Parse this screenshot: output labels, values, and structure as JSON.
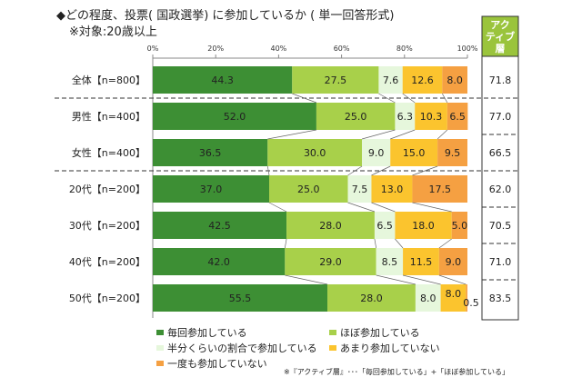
{
  "title": "◆どの程度、投票( 国政選挙) に参加しているか ( 単一回答形式)",
  "subtitle": "※対象:20歳以上",
  "active_header": "アクティブ層",
  "footnote": "※『アクティブ層』･･･「毎回参加している」+「ほぼ参加している」",
  "colors": {
    "s1": "#3d8f34",
    "s2": "#a8d04a",
    "s3": "#e6f7dc",
    "s4": "#fbc42e",
    "s5": "#f5a042",
    "active_header": "#9ac43c"
  },
  "chart_data": {
    "type": "bar",
    "orientation": "horizontal-stacked-100",
    "xlim": [
      0,
      100
    ],
    "ticks": [
      "0%",
      "20%",
      "40%",
      "60%",
      "80%",
      "100%"
    ],
    "legend_position": "bottom",
    "categories": [
      "全体【n=800】",
      "男性【n=400】",
      "女性【n=400】",
      "20代【n=200】",
      "30代【n=200】",
      "40代【n=200】",
      "50代【n=200】"
    ],
    "series": [
      {
        "name": "毎回参加している",
        "values": [
          44.3,
          52.0,
          36.5,
          37.0,
          42.5,
          42.0,
          55.5
        ]
      },
      {
        "name": "ほぼ参加している",
        "values": [
          27.5,
          25.0,
          30.0,
          25.0,
          28.0,
          29.0,
          28.0
        ]
      },
      {
        "name": "半分くらいの割合で参加している",
        "values": [
          7.6,
          6.3,
          9.0,
          7.5,
          6.5,
          8.5,
          8.0
        ]
      },
      {
        "name": "あまり参加していない",
        "values": [
          12.6,
          10.3,
          15.0,
          13.0,
          18.0,
          11.5,
          8.0
        ]
      },
      {
        "name": "一度も参加していない",
        "values": [
          8.0,
          6.5,
          9.5,
          17.5,
          5.0,
          9.0,
          0.5
        ]
      }
    ],
    "active": [
      "71.8",
      "77.0",
      "66.5",
      "62.0",
      "70.5",
      "71.0",
      "83.5"
    ]
  }
}
